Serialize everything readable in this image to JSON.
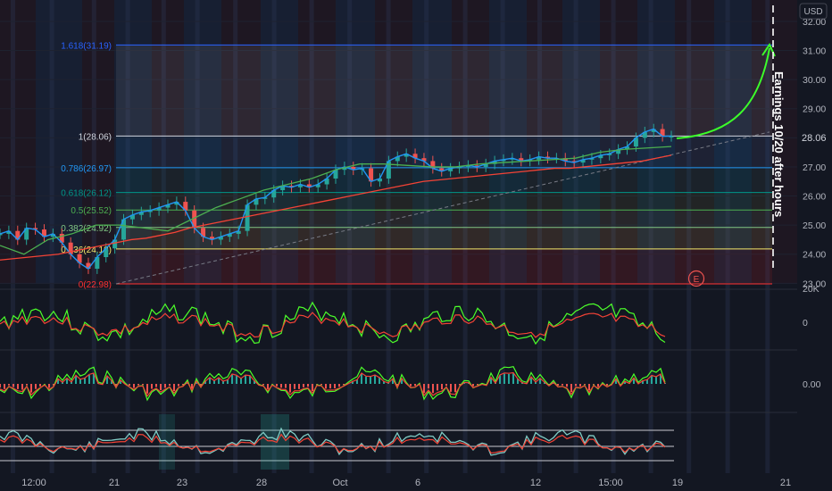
{
  "currency": "USD",
  "price_axis": {
    "ticks": [
      "32.00",
      "31.00",
      "30.00",
      "29.00",
      "28.00",
      "27.00",
      "26.00",
      "25.00",
      "24.00",
      "23.00"
    ],
    "last_price": "28.06"
  },
  "time_axis": {
    "ticks": [
      "12:00",
      "21",
      "23",
      "28",
      "Oct",
      "6",
      "12",
      "15:00",
      "19",
      "21"
    ]
  },
  "fib_levels": [
    {
      "label": "1.618(31.19)",
      "value": 31.19,
      "color": "#2962ff"
    },
    {
      "label": "1(28.06)",
      "value": 28.06,
      "color": "#d1d4dc"
    },
    {
      "label": "0.786(26.97)",
      "value": 26.97,
      "color": "#2196f3"
    },
    {
      "label": "0.618(26.12)",
      "value": 26.12,
      "color": "#009688"
    },
    {
      "label": "0.5(25.52)",
      "value": 25.52,
      "color": "#4caf50"
    },
    {
      "label": "0.382(24.92)",
      "value": 24.92,
      "color": "#81c784"
    },
    {
      "label": "0.236(24.18)",
      "value": 24.18,
      "color": "#f5e96b"
    },
    {
      "label": "0(22.98)",
      "value": 22.98,
      "color": "#ff3030"
    }
  ],
  "annotation": {
    "text": "Earnings 10/20 after hours"
  },
  "earnings_marker": {
    "label": "E"
  },
  "indicator_axes": {
    "pane1_ticks": [
      "20K",
      "0"
    ],
    "pane2_ticks": [
      "0.00"
    ]
  },
  "colors": {
    "background": "#131722",
    "up": "#26a69a",
    "down": "#ef5350",
    "price_line_blue": "#2196f3",
    "ma_red": "#f44336",
    "ma_green": "#4caf50",
    "projection": "#3cff2a"
  },
  "chart_data": [
    {
      "type": "line",
      "panel": "price",
      "currency": "USD",
      "y_ticks": [
        32,
        31,
        30,
        29,
        28,
        27,
        26,
        25,
        24,
        23
      ],
      "ylim": [
        22.9,
        32.4
      ],
      "x_ticks": [
        "12:00",
        "21",
        "23",
        "28",
        "Oct",
        "6",
        "12",
        "15:00",
        "19",
        "21"
      ],
      "series": [
        {
          "values": [
            24.7,
            24.8,
            24.5,
            24.9,
            24.85,
            24.6,
            24.7,
            24.4,
            24.0,
            23.7,
            23.5,
            23.9,
            24.2,
            24.5,
            25.2,
            25.35,
            25.45,
            25.5,
            25.6,
            25.7,
            25.8,
            25.5,
            24.9,
            24.6,
            24.5,
            24.6,
            24.7,
            24.8,
            25.7,
            25.9,
            25.95,
            26.2,
            26.35,
            26.3,
            26.4,
            26.3,
            26.4,
            26.6,
            26.9,
            27.0,
            26.9,
            26.95,
            26.5,
            26.6,
            27.2,
            27.35,
            27.45,
            27.3,
            27.2,
            26.95,
            26.85,
            26.95,
            27.0,
            27.05,
            27.0,
            27.1,
            27.2,
            27.25,
            27.3,
            27.2,
            27.25,
            27.35,
            27.3,
            27.3,
            27.2,
            27.15,
            27.25,
            27.3,
            27.4,
            27.45,
            27.6,
            27.7,
            28.0,
            28.2,
            28.3,
            28.05,
            28.06
          ]
        }
      ],
      "moving_averages": [
        {
          "values": [
            23.8,
            23.85,
            23.9,
            23.95,
            24.0,
            24.1,
            24.2,
            24.3,
            24.4,
            24.5,
            24.55,
            24.65,
            24.75,
            24.9,
            25.0,
            25.1,
            25.2,
            25.3,
            25.4,
            25.5,
            25.6,
            25.7,
            25.8,
            25.9,
            26.0,
            26.1,
            26.2,
            26.3,
            26.4,
            26.5,
            26.55,
            26.6,
            26.65,
            26.7,
            26.75,
            26.8,
            26.85,
            26.9,
            26.95,
            26.95,
            27.0,
            27.05,
            27.1,
            27.15,
            27.2,
            27.3,
            27.4
          ]
        },
        {
          "values": [
            24.3,
            24.0,
            24.5,
            24.7,
            25.0,
            25.0,
            24.9,
            24.8,
            25.2,
            25.6,
            25.9,
            26.2,
            26.4,
            26.6,
            26.9,
            27.1,
            27.1,
            27.05,
            27.0,
            27.0,
            27.1,
            27.15,
            27.2,
            27.25,
            27.3,
            27.5,
            27.6,
            27.65,
            27.7
          ]
        }
      ]
    }
  ]
}
